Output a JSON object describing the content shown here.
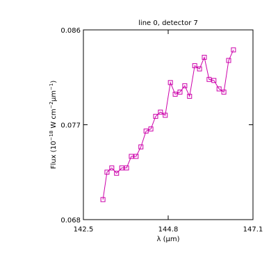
{
  "chart_data": {
    "type": "line",
    "title": "line 0, detector 7",
    "xlabel": [
      {
        "text": "λ (μm)"
      }
    ],
    "ylabel": [
      {
        "text": "Flux (10"
      },
      {
        "text": "−18",
        "sup": true
      },
      {
        "text": " W cm"
      },
      {
        "text": "−2",
        "sup": true
      },
      {
        "text": "μm"
      },
      {
        "text": "−1",
        "sup": true
      },
      {
        "text": ")"
      }
    ],
    "x": [
      143.03,
      143.14,
      143.27,
      143.4,
      143.54,
      143.67,
      143.8,
      143.93,
      144.06,
      144.2,
      144.33,
      144.46,
      144.59,
      144.72,
      144.86,
      144.99,
      145.12,
      145.25,
      145.38,
      145.52,
      145.65,
      145.78,
      145.91,
      146.04,
      146.18,
      146.31,
      146.44,
      146.57
    ],
    "series": [
      {
        "color": "#cc00aa",
        "values": [
          0.0699,
          0.0725,
          0.0729,
          0.0724,
          0.0729,
          0.0729,
          0.074,
          0.074,
          0.0749,
          0.0764,
          0.0766,
          0.0778,
          0.0782,
          0.0779,
          0.081,
          0.0799,
          0.0801,
          0.0807,
          0.0797,
          0.0826,
          0.0823,
          0.0834,
          0.0813,
          0.0812,
          0.0804,
          0.0801,
          0.0831,
          0.0841
        ]
      }
    ],
    "xlim": [
      142.5,
      147.1
    ],
    "xticks": [
      142.5,
      144.8,
      147.1
    ],
    "ylim": [
      0.068,
      0.086
    ],
    "yticks": [
      0.068,
      0.077,
      0.086
    ],
    "marker": "square"
  }
}
